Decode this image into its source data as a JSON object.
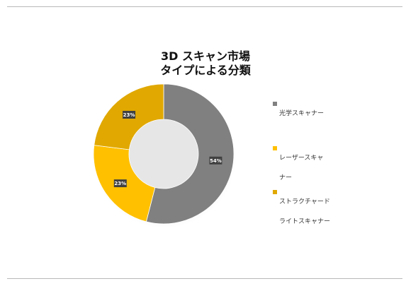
{
  "chart_data": {
    "type": "pie",
    "title_lines": [
      "3D スキャン市場",
      "タイプによる分類"
    ],
    "categories": [
      "光学スキャナー",
      "レーザースキャナー",
      "ストラクチャードライトスキャナー"
    ],
    "legend_lines": [
      [
        "光学スキャナー"
      ],
      [
        "レーザースキャ",
        "ナー"
      ],
      [
        "ストラクチャード",
        "ライトスキャナー"
      ]
    ],
    "values": [
      54,
      23,
      23
    ],
    "data_labels": [
      "54%",
      "23%",
      "23%"
    ],
    "colors": [
      "#808080",
      "#FFC000",
      "#E0A800"
    ],
    "legend_position": "right",
    "donut": true
  }
}
